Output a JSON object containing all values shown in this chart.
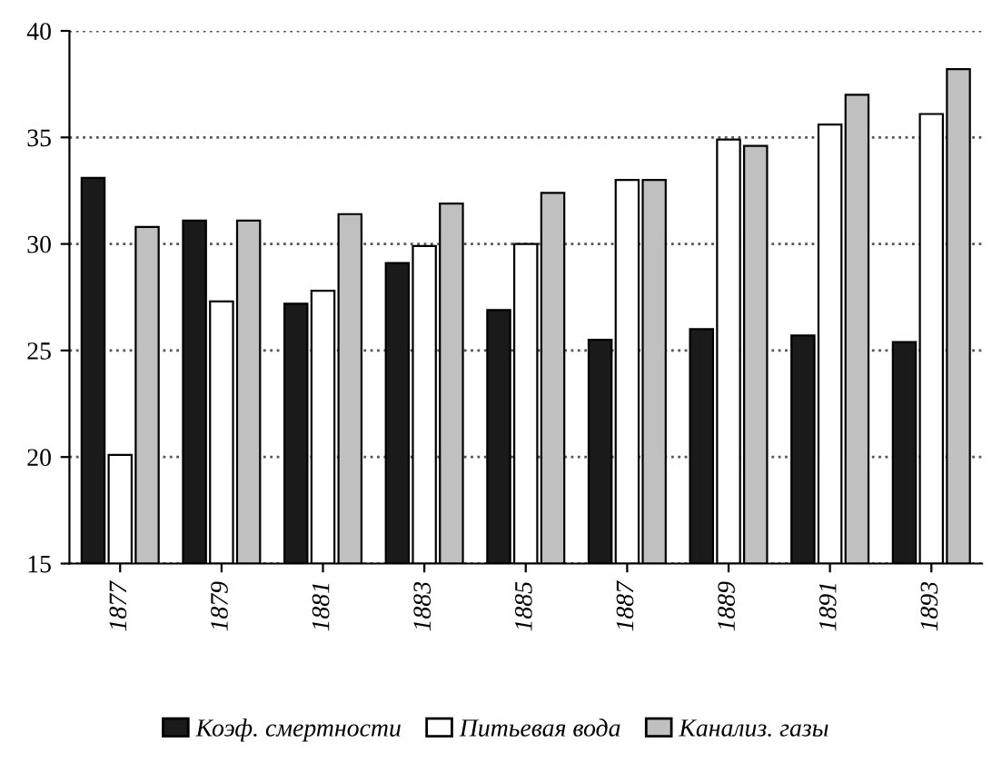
{
  "chart_data": {
    "type": "bar",
    "categories": [
      "1877",
      "1879",
      "1881",
      "1883",
      "1885",
      "1887",
      "1889",
      "1891",
      "1893"
    ],
    "series": [
      {
        "name": "Коэф. смертности",
        "color": "#1a1a1a",
        "values": [
          33.1,
          31.1,
          27.2,
          29.1,
          26.9,
          25.5,
          26.0,
          25.7,
          25.4
        ]
      },
      {
        "name": "Питьевая вода",
        "color": "#ffffff",
        "values": [
          20.1,
          27.3,
          27.8,
          29.9,
          30.0,
          33.0,
          34.9,
          35.6,
          36.1
        ]
      },
      {
        "name": "Канализ. газы",
        "color": "#c0c0c0",
        "values": [
          30.8,
          31.1,
          31.4,
          31.9,
          32.4,
          33.0,
          34.6,
          37.0,
          38.2
        ]
      }
    ],
    "ylim": [
      15,
      40
    ],
    "yticks": [
      15,
      20,
      25,
      30,
      35,
      40
    ],
    "grid": "y",
    "legend": "bottom"
  }
}
